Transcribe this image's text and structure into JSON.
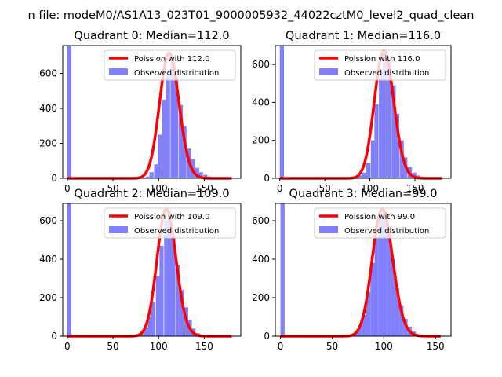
{
  "suptitle": "n file: modeM0/AS1A13_023T01_9000005932_44022cztM0_level2_quad_clean",
  "colors": {
    "hist": "#8080ff",
    "fit": "#ff0000",
    "axes": "#000000"
  },
  "chart_data": [
    {
      "type": "bar",
      "title": "Quadrant 0: Median=112.0",
      "xlim": [
        -5,
        190
      ],
      "ylim": [
        0,
        760
      ],
      "xticks": [
        0,
        50,
        100,
        150
      ],
      "yticks": [
        0,
        200,
        400,
        600
      ],
      "bin_width": 4.5,
      "hist": {
        "name": "Observed distribution",
        "x": [
          0,
          81,
          86,
          90,
          95,
          99,
          104,
          108,
          113,
          117,
          122,
          126,
          131,
          135,
          140,
          144,
          149,
          153,
          158
        ],
        "values": [
          760,
          5,
          10,
          35,
          80,
          250,
          450,
          600,
          660,
          590,
          420,
          300,
          170,
          110,
          60,
          35,
          20,
          10,
          5
        ]
      },
      "fit": {
        "name": "Poission with 112.0",
        "mu": 112.0,
        "peak": 718,
        "x_range": [
          0,
          180
        ]
      },
      "legend": [
        "Poission with 112.0",
        "Observed distribution"
      ]
    },
    {
      "type": "bar",
      "title": "Quadrant 1: Median=116.0",
      "xlim": [
        -5,
        190
      ],
      "ylim": [
        0,
        700
      ],
      "xticks": [
        0,
        50,
        100,
        150
      ],
      "yticks": [
        0,
        200,
        400,
        600
      ],
      "bin_width": 4.6,
      "hist": {
        "name": "Observed distribution",
        "x": [
          0,
          82,
          87,
          91,
          96,
          101,
          105,
          110,
          114,
          119,
          124,
          128,
          133,
          137,
          142,
          147,
          151,
          156,
          160
        ],
        "values": [
          700,
          5,
          15,
          30,
          80,
          200,
          390,
          560,
          670,
          630,
          490,
          340,
          200,
          110,
          60,
          30,
          15,
          8,
          3
        ]
      },
      "fit": {
        "name": "Poission with 116.0",
        "mu": 116.0,
        "peak": 671,
        "x_range": [
          0,
          180
        ]
      },
      "legend": [
        "Poission with 116.0",
        "Observed distribution"
      ]
    },
    {
      "type": "bar",
      "title": "Quadrant 2: Median=109.0",
      "xlim": [
        -5,
        190
      ],
      "ylim": [
        0,
        690
      ],
      "xticks": [
        0,
        50,
        100,
        150
      ],
      "yticks": [
        0,
        200,
        400,
        600
      ],
      "bin_width": 4.4,
      "hist": {
        "name": "Observed distribution",
        "x": [
          0,
          75,
          79,
          84,
          88,
          92,
          97,
          101,
          106,
          110,
          114,
          119,
          123,
          128,
          132,
          136,
          141,
          145
        ],
        "values": [
          690,
          5,
          15,
          45,
          100,
          180,
          310,
          470,
          600,
          650,
          520,
          370,
          240,
          150,
          85,
          40,
          15,
          5
        ]
      },
      "fit": {
        "name": "Poission with 109.0",
        "mu": 109.0,
        "peak": 660,
        "x_range": [
          0,
          180
        ]
      },
      "legend": [
        "Poission with 109.0",
        "Observed distribution"
      ]
    },
    {
      "type": "bar",
      "title": "Quadrant 3: Median=99.0",
      "xlim": [
        -5,
        165
      ],
      "ylim": [
        0,
        690
      ],
      "xticks": [
        0,
        50,
        100,
        150
      ],
      "yticks": [
        0,
        200,
        400,
        600
      ],
      "bin_width": 4.0,
      "hist": {
        "name": "Observed distribution",
        "x": [
          0,
          67,
          71,
          75,
          79,
          83,
          87,
          91,
          95,
          99,
          103,
          107,
          111,
          115,
          119,
          123,
          127,
          131,
          135
        ],
        "values": [
          690,
          5,
          20,
          50,
          110,
          230,
          380,
          520,
          620,
          650,
          560,
          400,
          250,
          160,
          90,
          50,
          25,
          10,
          3
        ]
      },
      "fit": {
        "name": "Poission with 99.0",
        "mu": 99.0,
        "peak": 659,
        "x_range": [
          0,
          155
        ]
      },
      "legend": [
        "Poission with 99.0",
        "Observed distribution"
      ]
    }
  ]
}
